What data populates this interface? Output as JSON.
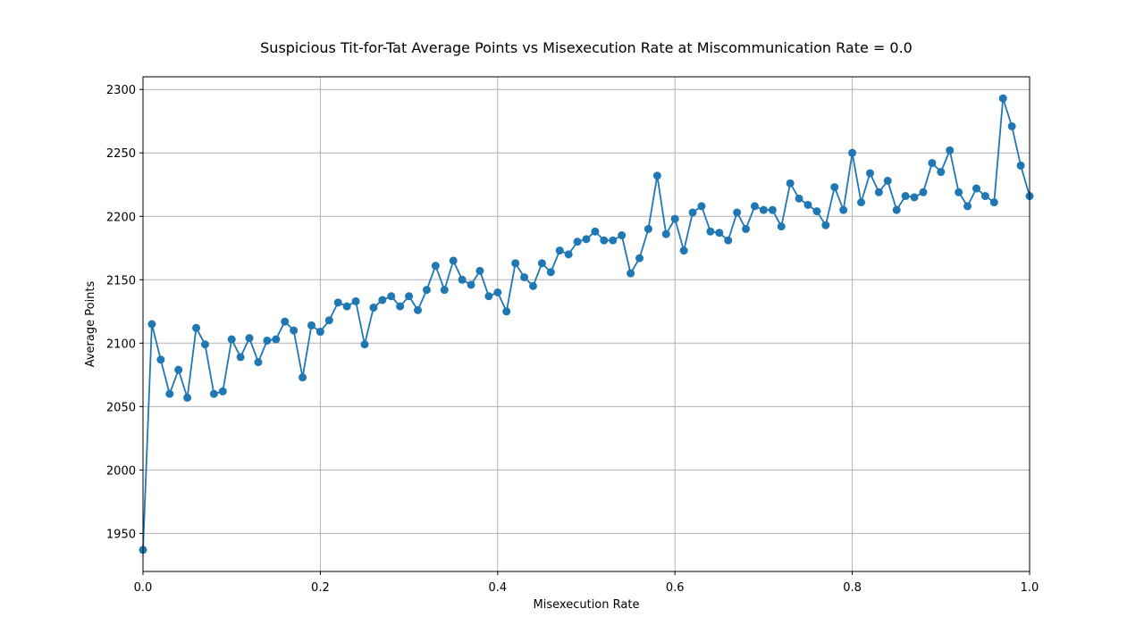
{
  "chart_data": {
    "type": "line",
    "title": "Suspicious Tit-for-Tat Average Points vs Misexecution Rate at Miscommunication Rate = 0.0",
    "xlabel": "Misexecution Rate",
    "ylabel": "Average Points",
    "xlim": [
      0,
      1
    ],
    "ylim": [
      1920,
      2310
    ],
    "xticks": [
      0,
      0.2,
      0.4,
      0.6,
      0.8,
      1.0
    ],
    "xtick_labels": [
      "0.0",
      "0.2",
      "0.4",
      "0.6",
      "0.8",
      "1.0"
    ],
    "yticks": [
      1950,
      2000,
      2050,
      2100,
      2150,
      2200,
      2250,
      2300
    ],
    "ytick_labels": [
      "1950",
      "2000",
      "2050",
      "2100",
      "2150",
      "2200",
      "2250",
      "2300"
    ],
    "grid": true,
    "marker": "circle",
    "color": "#1f77b4",
    "x": [
      0.0,
      0.01,
      0.02,
      0.03,
      0.04,
      0.05,
      0.06,
      0.07,
      0.08,
      0.09,
      0.1,
      0.11,
      0.12,
      0.13,
      0.14,
      0.15,
      0.16,
      0.17,
      0.18,
      0.19,
      0.2,
      0.21,
      0.22,
      0.23,
      0.24,
      0.25,
      0.26,
      0.27,
      0.28,
      0.29,
      0.3,
      0.31,
      0.32,
      0.33,
      0.34,
      0.35,
      0.36,
      0.37,
      0.38,
      0.39,
      0.4,
      0.41,
      0.42,
      0.43,
      0.44,
      0.45,
      0.46,
      0.47,
      0.48,
      0.49,
      0.5,
      0.51,
      0.52,
      0.53,
      0.54,
      0.55,
      0.56,
      0.57,
      0.58,
      0.59,
      0.6,
      0.61,
      0.62,
      0.63,
      0.64,
      0.65,
      0.66,
      0.67,
      0.68,
      0.69,
      0.7,
      0.71,
      0.72,
      0.73,
      0.74,
      0.75,
      0.76,
      0.77,
      0.78,
      0.79,
      0.8,
      0.81,
      0.82,
      0.83,
      0.84,
      0.85,
      0.86,
      0.87,
      0.88,
      0.89,
      0.9,
      0.91,
      0.92,
      0.93,
      0.94,
      0.95,
      0.96,
      0.97,
      0.98,
      0.99,
      1.0
    ],
    "y": [
      1937,
      2115,
      2087,
      2060,
      2079,
      2057,
      2112,
      2099,
      2060,
      2062,
      2103,
      2089,
      2104,
      2085,
      2102,
      2103,
      2117,
      2110,
      2073,
      2114,
      2109,
      2118,
      2132,
      2129,
      2133,
      2099,
      2128,
      2134,
      2137,
      2129,
      2137,
      2126,
      2142,
      2161,
      2142,
      2165,
      2150,
      2146,
      2157,
      2137,
      2140,
      2125,
      2163,
      2152,
      2145,
      2163,
      2156,
      2173,
      2170,
      2180,
      2182,
      2188,
      2181,
      2181,
      2185,
      2155,
      2167,
      2190,
      2232,
      2186,
      2198,
      2173,
      2203,
      2208,
      2188,
      2187,
      2181,
      2203,
      2190,
      2208,
      2205,
      2205,
      2192,
      2226,
      2214,
      2209,
      2204,
      2193,
      2223,
      2205,
      2250,
      2211,
      2234,
      2219,
      2228,
      2205,
      2216,
      2215,
      2219,
      2242,
      2235,
      2252,
      2219,
      2208,
      2222,
      2216,
      2211,
      2293,
      2271,
      2240,
      2216
    ]
  }
}
